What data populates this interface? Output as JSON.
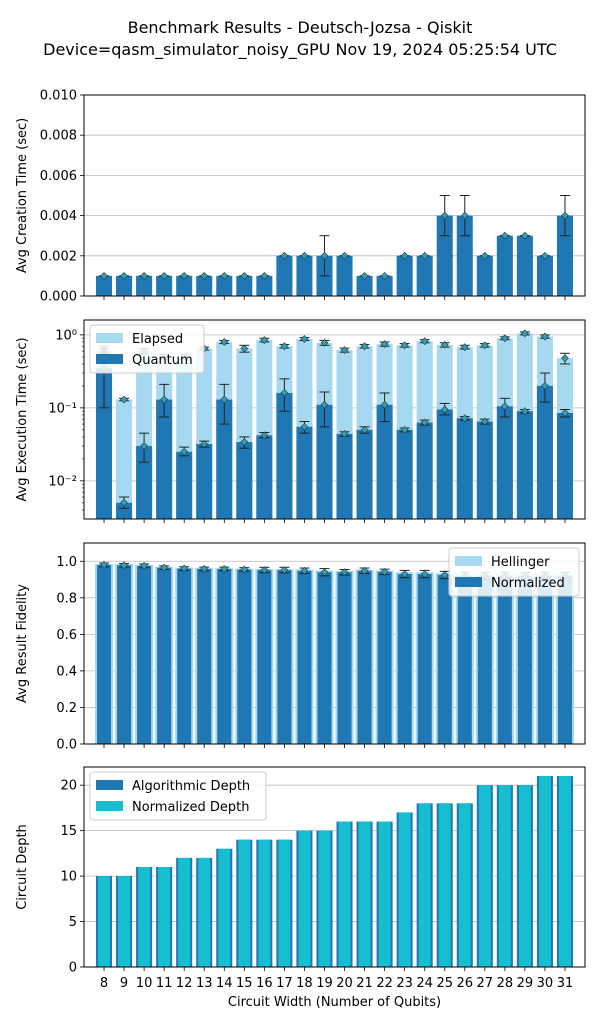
{
  "title_line1": "Benchmark Results - Deutsch-Jozsa - Qiskit",
  "title_line2": "Device=qasm_simulator_noisy_GPU  Nov 19, 2024 05:25:54 UTC",
  "chart_data": [
    {
      "type": "bar",
      "ylabel": "Avg Creation Time (sec)",
      "ylim": [
        0,
        0.01
      ],
      "yticks": [
        "0.000",
        "0.002",
        "0.004",
        "0.006",
        "0.008",
        "0.010"
      ],
      "grid": true,
      "categories": [
        8,
        9,
        10,
        11,
        12,
        13,
        14,
        15,
        16,
        17,
        18,
        19,
        20,
        21,
        22,
        23,
        24,
        25,
        26,
        27,
        28,
        29,
        30,
        31
      ],
      "series": [
        {
          "values": [
            0.001,
            0.001,
            0.001,
            0.001,
            0.001,
            0.001,
            0.001,
            0.001,
            0.001,
            0.002,
            0.002,
            0.002,
            0.002,
            0.001,
            0.001,
            0.002,
            0.002,
            0.004,
            0.004,
            0.002,
            0.003,
            0.003,
            0.002,
            0.004
          ],
          "err_low": [
            0.001,
            0.001,
            0.001,
            0.001,
            0.001,
            0.001,
            0.001,
            0.001,
            0.001,
            0.002,
            0.002,
            0.001,
            0.002,
            0.001,
            0.001,
            0.002,
            0.002,
            0.003,
            0.003,
            0.002,
            0.003,
            0.003,
            0.002,
            0.003
          ],
          "err_high": [
            0.001,
            0.001,
            0.001,
            0.001,
            0.001,
            0.001,
            0.001,
            0.001,
            0.001,
            0.002,
            0.002,
            0.003,
            0.002,
            0.001,
            0.001,
            0.002,
            0.002,
            0.005,
            0.005,
            0.002,
            0.003,
            0.003,
            0.002,
            0.005
          ]
        }
      ],
      "colors": {
        "bar": "#1f77b4",
        "marker": "#2ca0b8"
      }
    },
    {
      "type": "bar",
      "ylabel": "Avg Execution Time (sec)",
      "yscale": "log",
      "ylim": [
        0.003,
        1.6
      ],
      "yticks": [
        {
          "v": 0.01,
          "label": "10⁻²"
        },
        {
          "v": 0.1,
          "label": "10⁻¹"
        },
        {
          "v": 1,
          "label": "10⁰"
        }
      ],
      "grid": true,
      "legend": "top-left",
      "categories": [
        8,
        9,
        10,
        11,
        12,
        13,
        14,
        15,
        16,
        17,
        18,
        19,
        20,
        21,
        22,
        23,
        24,
        25,
        26,
        27,
        28,
        29,
        30,
        31
      ],
      "series": [
        {
          "name": "Elapsed",
          "color": "#a6d9f0",
          "values": [
            0.6,
            0.13,
            0.6,
            0.5,
            0.5,
            0.65,
            0.8,
            0.65,
            0.85,
            0.7,
            0.88,
            0.78,
            0.62,
            0.7,
            0.75,
            0.72,
            0.82,
            0.73,
            0.68,
            0.72,
            0.9,
            1.05,
            0.95,
            0.48
          ],
          "err_low": [
            0.55,
            0.125,
            0.55,
            0.46,
            0.46,
            0.62,
            0.76,
            0.58,
            0.8,
            0.66,
            0.84,
            0.72,
            0.58,
            0.66,
            0.7,
            0.68,
            0.78,
            0.68,
            0.64,
            0.68,
            0.86,
            1.0,
            0.9,
            0.4
          ],
          "err_high": [
            0.65,
            0.135,
            0.65,
            0.54,
            0.54,
            0.68,
            0.84,
            0.72,
            0.9,
            0.74,
            0.92,
            0.84,
            0.66,
            0.74,
            0.8,
            0.76,
            0.86,
            0.78,
            0.72,
            0.76,
            0.94,
            1.1,
            1.0,
            0.56
          ]
        },
        {
          "name": "Quantum",
          "color": "#1f77b4",
          "values": [
            0.35,
            0.005,
            0.03,
            0.13,
            0.025,
            0.032,
            0.13,
            0.034,
            0.042,
            0.16,
            0.055,
            0.11,
            0.044,
            0.05,
            0.11,
            0.05,
            0.063,
            0.095,
            0.072,
            0.065,
            0.105,
            0.09,
            0.2,
            0.085
          ],
          "err_low": [
            0.1,
            0.0042,
            0.018,
            0.075,
            0.022,
            0.029,
            0.06,
            0.028,
            0.039,
            0.09,
            0.045,
            0.055,
            0.041,
            0.045,
            0.065,
            0.047,
            0.058,
            0.08,
            0.068,
            0.06,
            0.075,
            0.085,
            0.12,
            0.075
          ],
          "err_high": [
            0.7,
            0.006,
            0.045,
            0.21,
            0.029,
            0.035,
            0.21,
            0.04,
            0.046,
            0.25,
            0.065,
            0.165,
            0.047,
            0.055,
            0.16,
            0.053,
            0.068,
            0.115,
            0.076,
            0.07,
            0.135,
            0.095,
            0.3,
            0.095
          ]
        }
      ]
    },
    {
      "type": "bar",
      "ylabel": "Avg Result Fidelity",
      "ylim": [
        0,
        1.1
      ],
      "yticks": [
        "0.0",
        "0.2",
        "0.4",
        "0.6",
        "0.8",
        "1.0"
      ],
      "grid": true,
      "legend": "top-right",
      "categories": [
        8,
        9,
        10,
        11,
        12,
        13,
        14,
        15,
        16,
        17,
        18,
        19,
        20,
        21,
        22,
        23,
        24,
        25,
        26,
        27,
        28,
        29,
        30,
        31
      ],
      "series": [
        {
          "name": "Hellinger",
          "color": "#a6d9f0",
          "values": [
            0.985,
            0.985,
            0.98,
            0.97,
            0.965,
            0.963,
            0.962,
            0.96,
            0.958,
            0.957,
            0.955,
            0.95,
            0.948,
            0.955,
            0.95,
            0.94,
            0.94,
            0.935,
            0.93,
            0.93,
            0.93,
            0.93,
            0.93,
            0.93
          ]
        },
        {
          "name": "Normalized",
          "color": "#1f77b4",
          "values": [
            0.98,
            0.978,
            0.975,
            0.965,
            0.96,
            0.958,
            0.958,
            0.955,
            0.952,
            0.952,
            0.948,
            0.94,
            0.94,
            0.948,
            0.942,
            0.93,
            0.93,
            0.925,
            0.92,
            0.92,
            0.92,
            0.92,
            0.92,
            0.92
          ],
          "err": [
            0.01,
            0.01,
            0.01,
            0.01,
            0.01,
            0.01,
            0.01,
            0.01,
            0.015,
            0.015,
            0.015,
            0.02,
            0.015,
            0.015,
            0.015,
            0.02,
            0.02,
            0.02,
            0.02,
            0.02,
            0.02,
            0.02,
            0.02,
            0.02
          ]
        }
      ]
    },
    {
      "type": "bar",
      "ylabel": "Circuit Depth",
      "xlabel": "Circuit Width (Number of Qubits)",
      "ylim": [
        0,
        22
      ],
      "yticks": [
        "0",
        "5",
        "10",
        "15",
        "20"
      ],
      "grid": true,
      "legend": "top-left",
      "categories": [
        8,
        9,
        10,
        11,
        12,
        13,
        14,
        15,
        16,
        17,
        18,
        19,
        20,
        21,
        22,
        23,
        24,
        25,
        26,
        27,
        28,
        29,
        30,
        31
      ],
      "series": [
        {
          "name": "Algorithmic Depth",
          "color": "#1f77b4",
          "values": [
            10,
            10,
            11,
            11,
            12,
            12,
            13,
            14,
            14,
            14,
            15,
            15,
            16,
            16,
            16,
            17,
            18,
            18,
            18,
            20,
            20,
            20,
            21,
            21
          ]
        },
        {
          "name": "Normalized Depth",
          "color": "#17becf",
          "values": [
            10,
            10,
            11,
            11,
            12,
            12,
            13,
            14,
            14,
            14,
            15,
            15,
            16,
            16,
            16,
            17,
            18,
            18,
            18,
            20,
            20,
            20,
            21,
            21
          ]
        }
      ]
    }
  ]
}
